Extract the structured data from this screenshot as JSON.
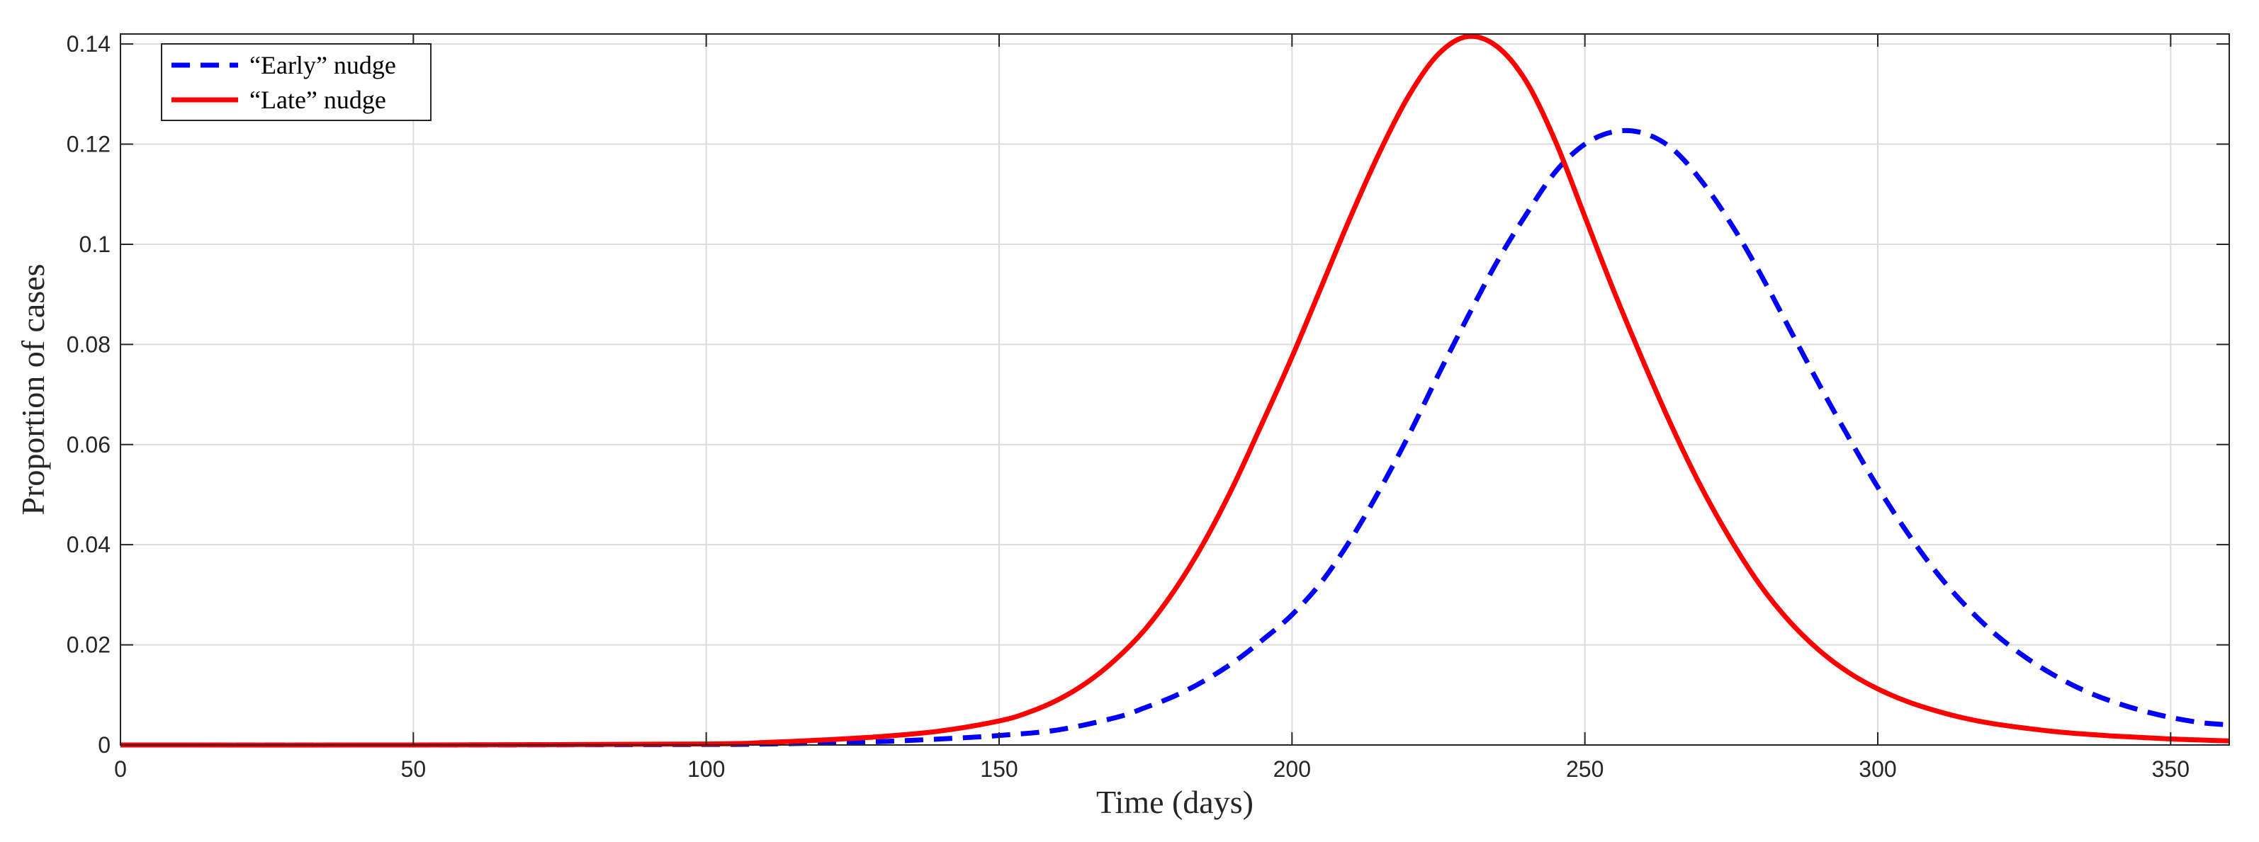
{
  "chart_data": {
    "type": "line",
    "title": "",
    "xlabel": "Time (days)",
    "ylabel": "Proportion of cases",
    "xlim": [
      0,
      360
    ],
    "ylim": [
      0,
      0.142
    ],
    "xticks": [
      0,
      50,
      100,
      150,
      200,
      250,
      300,
      350
    ],
    "yticks": [
      0,
      0.02,
      0.04,
      0.06,
      0.08,
      0.1,
      0.12,
      0.14
    ],
    "xtick_labels": [
      "0",
      "50",
      "100",
      "150",
      "200",
      "250",
      "300",
      "350"
    ],
    "ytick_labels": [
      "0",
      "0.02",
      "0.04",
      "0.06",
      "0.08",
      "0.1",
      "0.12",
      "0.14"
    ],
    "grid": true,
    "legend_position": "top-left",
    "series": [
      {
        "name": "“Early” nudge",
        "color": "#0000ff",
        "style": "dashed",
        "x": [
          0,
          50,
          100,
          110,
          120,
          130,
          140,
          150,
          160,
          170,
          175,
          180,
          185,
          190,
          195,
          200,
          205,
          210,
          215,
          220,
          225,
          230,
          235,
          240,
          245,
          250,
          255,
          260,
          265,
          270,
          275,
          280,
          285,
          290,
          295,
          300,
          305,
          310,
          315,
          320,
          325,
          330,
          335,
          340,
          345,
          350,
          355,
          360
        ],
        "y": [
          0,
          0,
          0.0001,
          0.0002,
          0.0004,
          0.0007,
          0.0012,
          0.0019,
          0.003,
          0.0055,
          0.0075,
          0.0098,
          0.0128,
          0.0165,
          0.021,
          0.026,
          0.0325,
          0.041,
          0.051,
          0.062,
          0.074,
          0.0855,
          0.0965,
          0.106,
          0.1145,
          0.12,
          0.1225,
          0.1222,
          0.119,
          0.1125,
          0.104,
          0.094,
          0.083,
          0.072,
          0.0615,
          0.0515,
          0.0425,
          0.0345,
          0.0278,
          0.0222,
          0.0177,
          0.014,
          0.011,
          0.0087,
          0.0069,
          0.0055,
          0.0045,
          0.004
        ]
      },
      {
        "name": "“Late” nudge",
        "color": "#ff0000",
        "style": "solid",
        "x": [
          0,
          50,
          100,
          110,
          120,
          130,
          140,
          150,
          155,
          160,
          165,
          170,
          175,
          180,
          185,
          190,
          195,
          200,
          205,
          210,
          215,
          220,
          225,
          230,
          235,
          240,
          245,
          250,
          255,
          260,
          265,
          270,
          275,
          280,
          285,
          290,
          295,
          300,
          305,
          310,
          315,
          320,
          325,
          330,
          335,
          340,
          345,
          350,
          355,
          360
        ],
        "y": [
          0,
          0,
          0.0002,
          0.0005,
          0.001,
          0.0017,
          0.0028,
          0.0048,
          0.0065,
          0.009,
          0.0125,
          0.0172,
          0.0232,
          0.031,
          0.0405,
          0.0518,
          0.0645,
          0.0775,
          0.0915,
          0.1055,
          0.1185,
          0.1298,
          0.138,
          0.1415,
          0.1395,
          0.1325,
          0.1205,
          0.1055,
          0.0905,
          0.0765,
          0.0632,
          0.0512,
          0.0408,
          0.0318,
          0.0246,
          0.0189,
          0.0145,
          0.0112,
          0.0087,
          0.0068,
          0.0053,
          0.0042,
          0.0034,
          0.0027,
          0.0022,
          0.0018,
          0.0015,
          0.0012,
          0.001,
          0.0008
        ]
      }
    ]
  }
}
